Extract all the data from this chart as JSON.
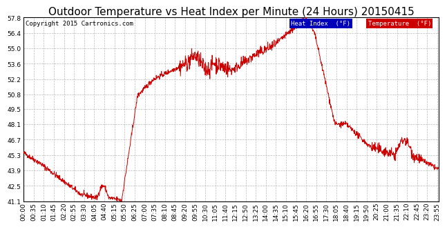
{
  "title": "Outdoor Temperature vs Heat Index per Minute (24 Hours) 20150415",
  "copyright": "Copyright 2015 Cartronics.com",
  "legend_label_heat": "Heat Index  (°F)",
  "legend_label_temp": "Temperature  (°F)",
  "line_color": "#cc0000",
  "background_color": "#ffffff",
  "grid_color": "#bbbbbb",
  "ylim": [
    41.1,
    57.8
  ],
  "yticks": [
    41.1,
    42.5,
    43.9,
    45.3,
    46.7,
    48.1,
    49.5,
    50.8,
    52.2,
    53.6,
    55.0,
    56.4,
    57.8
  ],
  "title_fontsize": 11,
  "tick_fontsize": 6.5,
  "copyright_fontsize": 6.5
}
